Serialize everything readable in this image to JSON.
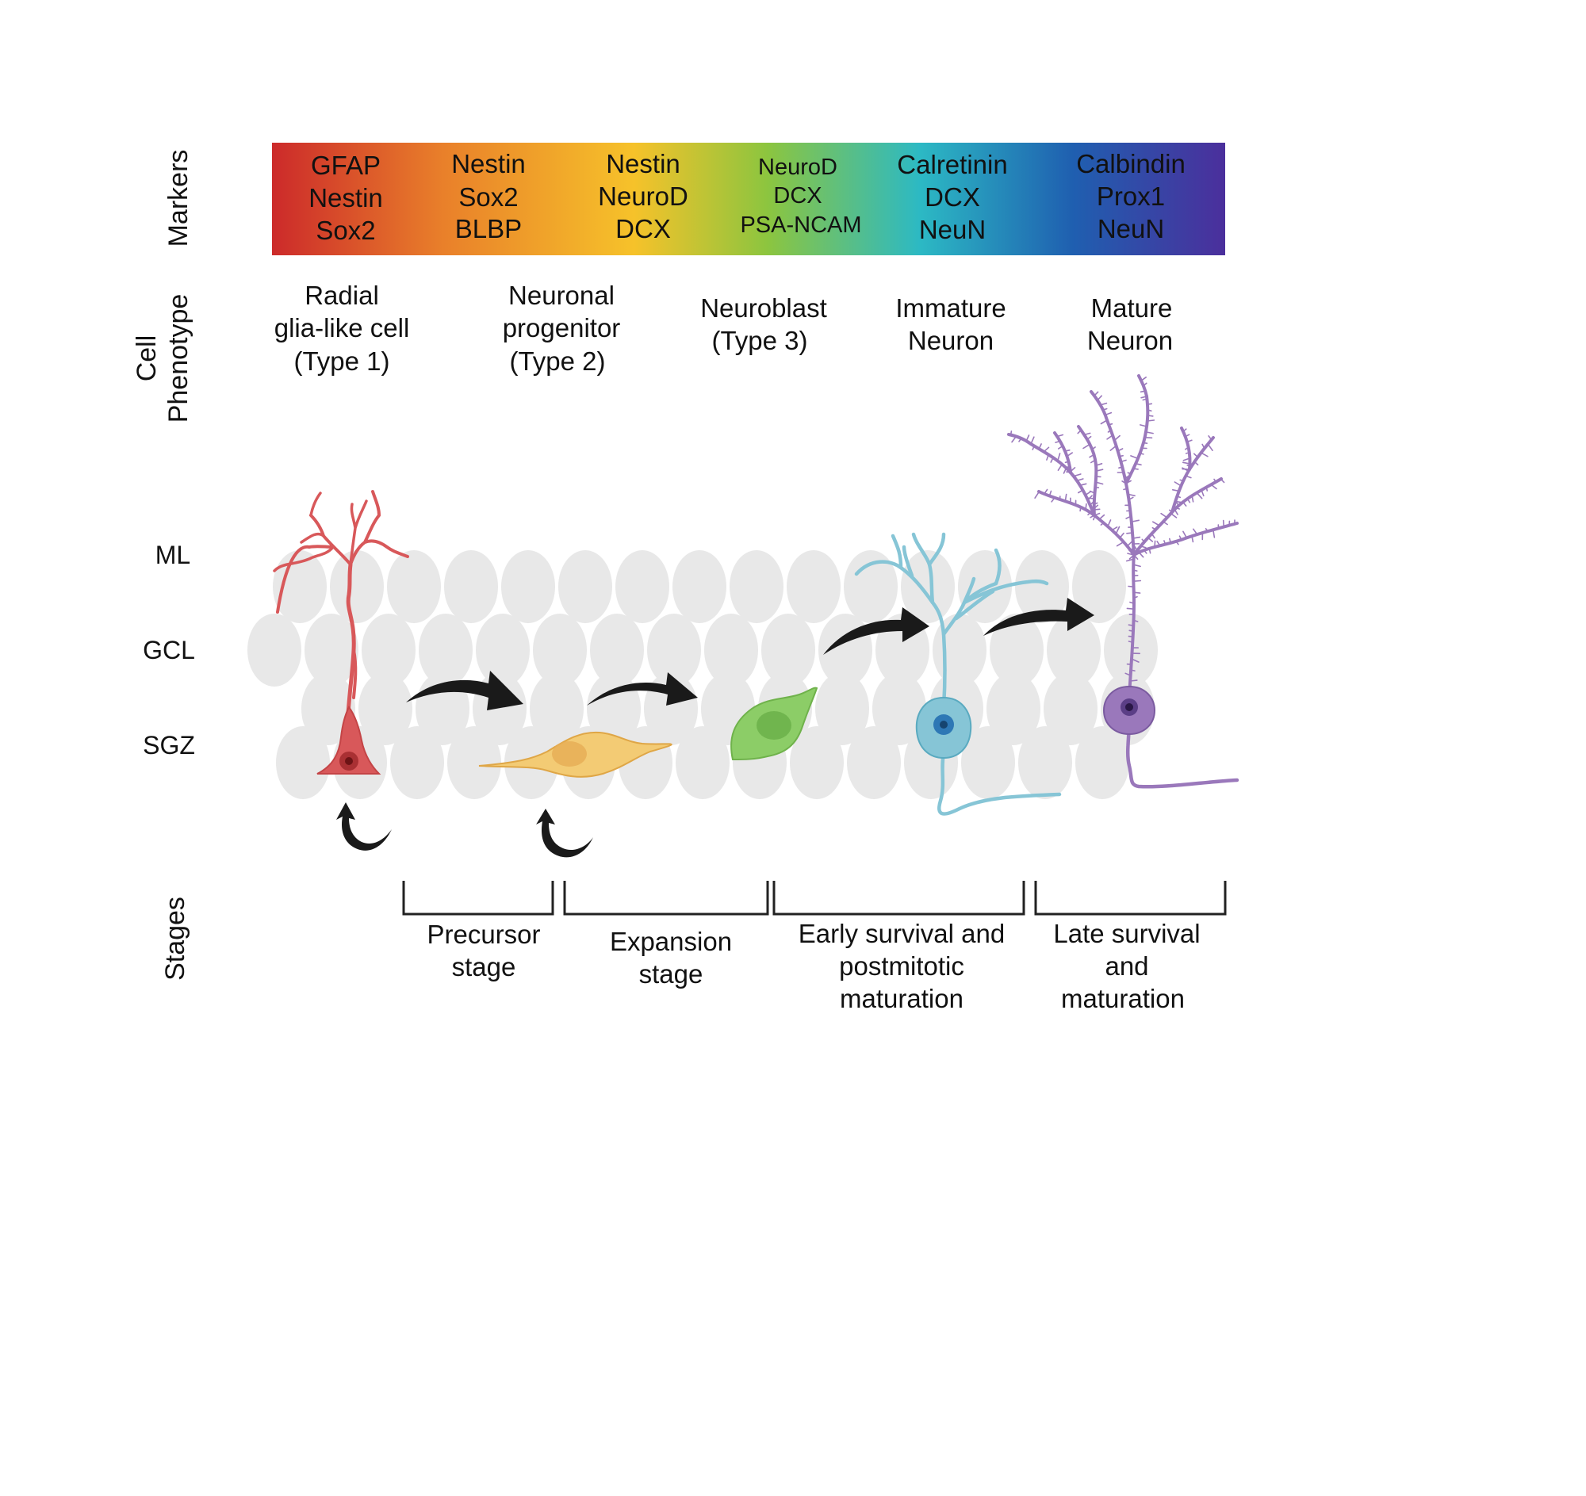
{
  "row_labels": {
    "markers": "Markers",
    "cell_phenotype": [
      "Cell",
      "Phenotype"
    ],
    "stages": "Stages"
  },
  "markers": [
    [
      "GFAP",
      "Nestin",
      "Sox2"
    ],
    [
      "Nestin",
      "Sox2",
      "BLBP"
    ],
    [
      "Nestin",
      "NeuroD",
      "DCX"
    ],
    [
      "NeuroD",
      "DCX",
      "PSA-NCAM"
    ],
    [
      "Calretinin",
      "DCX",
      "NeuN"
    ],
    [
      "Calbindin",
      "Prox1",
      "NeuN"
    ]
  ],
  "phenotypes": [
    [
      "Radial",
      "glia-like cell",
      "(Type 1)"
    ],
    [
      "Neuronal",
      "progenitor",
      "(Type 2)"
    ],
    [
      "Neuroblast",
      "(Type 3)"
    ],
    [
      "Immature",
      "Neuron"
    ],
    [
      "Mature",
      "Neuron"
    ]
  ],
  "layers": [
    "ML",
    "GCL",
    "SGZ"
  ],
  "stages": [
    [
      "Precursor",
      "stage"
    ],
    [
      "Expansion",
      "stage"
    ],
    [
      "Early survival and",
      "postmitotic",
      "maturation"
    ],
    [
      "Late survival",
      "and",
      "maturation"
    ]
  ],
  "colors": {
    "gradient": [
      "#cc2a2a",
      "#e9802a",
      "#f6c22a",
      "#8cc53f",
      "#2cb9c4",
      "#1f5fb0",
      "#4b2f9c"
    ],
    "radial_glia": "#d8585a",
    "progenitor": "#f3cb74",
    "neuroblast": "#8ccd67",
    "immature_neuron": "#86c5d6",
    "mature_neuron": "#9a78bb",
    "tissue_cell": "#e8e8e8",
    "arrow": "#1a1a1a"
  }
}
